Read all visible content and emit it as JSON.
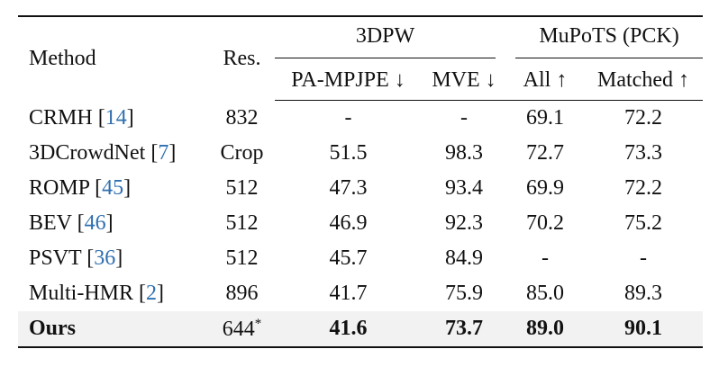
{
  "table": {
    "header": {
      "method": "Method",
      "res": "Res.",
      "group1": "3DPW",
      "group2": "MuPoTS (PCK)",
      "sub": [
        "PA-MPJPE ↓",
        "MVE ↓",
        "All ↑",
        "Matched ↑"
      ]
    },
    "rows": [
      {
        "method": {
          "name": "CRMH [",
          "cite": "14",
          "tail": "]"
        },
        "res": {
          "value": "832"
        },
        "cells": [
          "-",
          "-",
          "69.1",
          "72.2"
        ]
      },
      {
        "method": {
          "name": "3DCrowdNet [",
          "cite": "7",
          "tail": "]"
        },
        "res": {
          "value": "Crop"
        },
        "cells": [
          "51.5",
          "98.3",
          "72.7",
          "73.3"
        ]
      },
      {
        "method": {
          "name": "ROMP [",
          "cite": "45",
          "tail": "]"
        },
        "res": {
          "value": "512"
        },
        "cells": [
          "47.3",
          "93.4",
          "69.9",
          "72.2"
        ]
      },
      {
        "method": {
          "name": "BEV [",
          "cite": "46",
          "tail": "]"
        },
        "res": {
          "value": "512"
        },
        "cells": [
          "46.9",
          "92.3",
          "70.2",
          "75.2"
        ]
      },
      {
        "method": {
          "name": "PSVT [",
          "cite": "36",
          "tail": "]"
        },
        "res": {
          "value": "512"
        },
        "cells": [
          "45.7",
          "84.9",
          "-",
          "-"
        ]
      },
      {
        "method": {
          "name": "Multi-HMR [",
          "cite": "2",
          "tail": "]"
        },
        "res": {
          "value": "896"
        },
        "cells": [
          "41.7",
          "75.9",
          "85.0",
          "89.3"
        ]
      },
      {
        "method": {
          "name": "Ours"
        },
        "res": {
          "value": "644",
          "mark": "*"
        },
        "cells": [
          "41.6",
          "73.7",
          "89.0",
          "90.1"
        ],
        "highlight": true
      }
    ]
  }
}
